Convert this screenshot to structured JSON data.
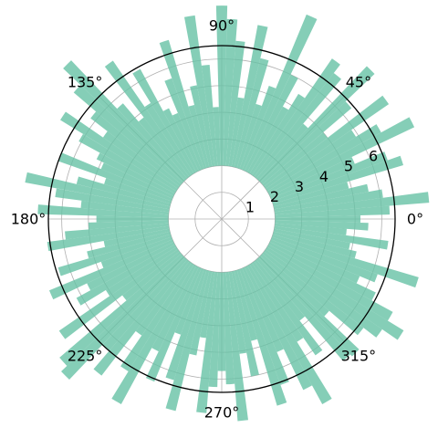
{
  "chart_data": {
    "type": "bar",
    "projection": "polar",
    "title": "",
    "bar_color": "#66c2a5",
    "bar_opacity": 0.8,
    "bottom": 2,
    "rmax": 6.5,
    "theta_ticks": [
      {
        "deg": 0,
        "label": "0°"
      },
      {
        "deg": 45,
        "label": "45°"
      },
      {
        "deg": 90,
        "label": "90°"
      },
      {
        "deg": 135,
        "label": "135°"
      },
      {
        "deg": 180,
        "label": "180°"
      },
      {
        "deg": 225,
        "label": "225°"
      },
      {
        "deg": 270,
        "label": "270°"
      },
      {
        "deg": 315,
        "label": "315°"
      }
    ],
    "r_ticks": [
      {
        "value": 1,
        "label": "1"
      },
      {
        "value": 2,
        "label": "2"
      },
      {
        "value": 3,
        "label": "3"
      },
      {
        "value": 4,
        "label": "4"
      },
      {
        "value": 5,
        "label": "5"
      },
      {
        "value": 6,
        "label": "6"
      }
    ],
    "r_label_angle_deg": 22.5,
    "grid": true,
    "bar_width_deg": 3,
    "angles_deg": [
      0,
      3,
      6,
      9,
      12,
      15,
      18,
      21,
      24,
      27,
      30,
      33,
      36,
      39,
      42,
      45,
      48,
      51,
      54,
      57,
      60,
      63,
      66,
      69,
      72,
      75,
      78,
      81,
      84,
      87,
      90,
      93,
      96,
      99,
      102,
      105,
      108,
      111,
      114,
      117,
      120,
      123,
      126,
      129,
      132,
      135,
      138,
      141,
      144,
      147,
      150,
      153,
      156,
      159,
      162,
      165,
      168,
      171,
      174,
      177,
      180,
      183,
      186,
      189,
      192,
      195,
      198,
      201,
      204,
      207,
      210,
      213,
      216,
      219,
      222,
      225,
      228,
      231,
      234,
      237,
      240,
      243,
      246,
      249,
      252,
      255,
      258,
      261,
      264,
      267,
      270,
      273,
      276,
      279,
      282,
      285,
      288,
      291,
      294,
      297,
      300,
      303,
      306,
      309,
      312,
      315,
      318,
      321,
      324,
      327,
      330,
      333,
      336,
      339,
      342,
      345,
      348,
      351,
      354,
      357
    ],
    "values": [
      3.2,
      4.3,
      5.8,
      4.1,
      3.6,
      2.9,
      5.1,
      4.6,
      3.4,
      6.0,
      4.8,
      3.9,
      5.6,
      3.0,
      4.4,
      5.9,
      2.7,
      4.9,
      5.3,
      3.5,
      2.8,
      4.0,
      6.3,
      3.3,
      2.5,
      4.2,
      5.4,
      2.6,
      4.7,
      5.5,
      6.0,
      2.2,
      3.8,
      5.7,
      3.1,
      2.4,
      5.0,
      3.6,
      2.3,
      2.6,
      4.4,
      3.1,
      5.2,
      2.8,
      3.7,
      6.2,
      5.3,
      4.2,
      3.4,
      5.1,
      4.1,
      3.2,
      2.9,
      4.5,
      2.6,
      3.6,
      5.5,
      4.3,
      3.3,
      4.9,
      2.7,
      3.0,
      3.9,
      4.6,
      2.5,
      3.2,
      4.4,
      2.8,
      5.0,
      3.6,
      4.2,
      3.1,
      5.4,
      2.7,
      6.0,
      6.3,
      4.5,
      5.4,
      3.3,
      4.7,
      5.9,
      3.5,
      4.6,
      2.6,
      4.3,
      5.4,
      3.2,
      2.5,
      5.3,
      4.3,
      3.7,
      4.2,
      5.6,
      3.1,
      4.0,
      2.7,
      5.3,
      4.6,
      3.4,
      5.1,
      5.9,
      3.4,
      4.2,
      2.8,
      5.0,
      5.1,
      3.3,
      4.7,
      5.3,
      6.0,
      5.3,
      4.4,
      3.6,
      4.2,
      5.7,
      3.2,
      2.9,
      4.3,
      2.7,
      3.5
    ]
  }
}
